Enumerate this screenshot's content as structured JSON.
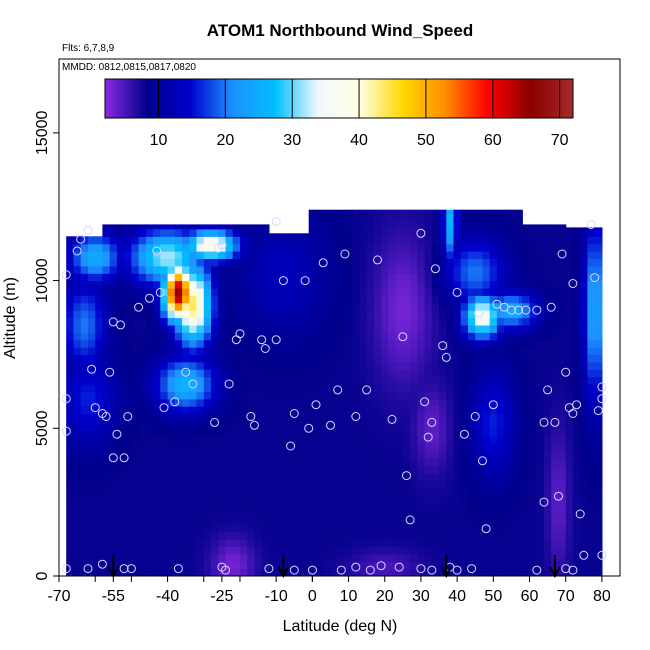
{
  "chart_data": {
    "type": "heatmap",
    "title": "ATOM1 Northbound Wind_Speed",
    "notes": [
      "Flts: 6,7,8,9",
      "MMDD: 0812,0815,0817,0820"
    ],
    "xlabel": "Latitude (deg N)",
    "ylabel": "Altitude (m)",
    "xlim": [
      -70,
      85
    ],
    "ylim": [
      0,
      17500
    ],
    "x_ticks": [
      "-70",
      "-55",
      "-40",
      "-25",
      "-10",
      "0",
      "10",
      "20",
      "30",
      "40",
      "50",
      "60",
      "70",
      "80"
    ],
    "x_tick_values": [
      -70,
      -55,
      -40,
      -25,
      -10,
      0,
      10,
      20,
      30,
      40,
      50,
      60,
      70,
      80
    ],
    "x_minor_ticks": [
      -60,
      -50,
      -30,
      -20,
      0
    ],
    "y_ticks": [
      "0",
      "5000",
      "10000",
      "15000"
    ],
    "y_tick_values": [
      0,
      5000,
      10000,
      15000
    ],
    "colorbar": {
      "range": [
        2,
        72
      ],
      "ticks": [
        "10",
        "20",
        "30",
        "40",
        "50",
        "60",
        "70"
      ],
      "tick_values": [
        10,
        20,
        30,
        40,
        50,
        60,
        70
      ],
      "colors": [
        "#8a2be2",
        "#00008b",
        "#0000cd",
        "#1e90ff",
        "#00bfff",
        "#f0f8ff",
        "#ffffe0",
        "#ffd700",
        "#ff8c00",
        "#ff0000",
        "#8b0000",
        "#a52a2a"
      ]
    },
    "field": {
      "background": 8,
      "features": [
        {
          "lat": -60,
          "alt": 10800,
          "w": 7,
          "h": 800,
          "v": 25
        },
        {
          "lat": -40,
          "alt": 10800,
          "w": 10,
          "h": 900,
          "v": 32
        },
        {
          "lat": -37,
          "alt": 9600,
          "w": 4,
          "h": 900,
          "v": 66
        },
        {
          "lat": -33,
          "alt": 9200,
          "w": 5,
          "h": 1300,
          "v": 44
        },
        {
          "lat": -28,
          "alt": 11200,
          "w": 7,
          "h": 500,
          "v": 40
        },
        {
          "lat": -35,
          "alt": 6500,
          "w": 8,
          "h": 900,
          "v": 26
        },
        {
          "lat": -63,
          "alt": 8500,
          "w": 6,
          "h": 1500,
          "v": 20
        },
        {
          "lat": -62,
          "alt": 6000,
          "w": 8,
          "h": 1500,
          "v": 16
        },
        {
          "lat": -22,
          "alt": 400,
          "w": 6,
          "h": 900,
          "v": 3
        },
        {
          "lat": 20,
          "alt": 300,
          "w": 10,
          "h": 600,
          "v": 5
        },
        {
          "lat": 25,
          "alt": 9000,
          "w": 8,
          "h": 2500,
          "v": 3
        },
        {
          "lat": 33,
          "alt": 5000,
          "w": 5,
          "h": 1500,
          "v": 4
        },
        {
          "lat": 38,
          "alt": 12000,
          "w": 2,
          "h": 1300,
          "v": 26
        },
        {
          "lat": 47,
          "alt": 8800,
          "w": 5,
          "h": 700,
          "v": 38
        },
        {
          "lat": 55,
          "alt": 9000,
          "w": 7,
          "h": 600,
          "v": 25
        },
        {
          "lat": 45,
          "alt": 10300,
          "w": 8,
          "h": 1100,
          "v": 20
        },
        {
          "lat": 78,
          "alt": 9000,
          "w": 3,
          "h": 3000,
          "v": 24
        },
        {
          "lat": 68,
          "alt": 2500,
          "w": 3,
          "h": 2500,
          "v": 4
        },
        {
          "lat": 50,
          "alt": 5200,
          "w": 6,
          "h": 1800,
          "v": 16
        },
        {
          "lat": -8,
          "alt": 10200,
          "w": 12,
          "h": 2000,
          "v": 13
        }
      ],
      "columns": [
        {
          "lat0": -68,
          "lat1": -58,
          "top": 11500
        },
        {
          "lat0": -58,
          "lat1": -12,
          "top": 11900
        },
        {
          "lat0": -12,
          "lat1": -1,
          "top": 11600
        },
        {
          "lat0": -1,
          "lat1": 58,
          "top": 12400
        },
        {
          "lat0": 58,
          "lat1": 70,
          "top": 11900
        },
        {
          "lat0": 70,
          "lat1": 80,
          "top": 11800
        }
      ]
    },
    "circles": [
      [
        -68,
        10200
      ],
      [
        -68,
        6000
      ],
      [
        -68,
        4900
      ],
      [
        -68,
        250
      ],
      [
        -65,
        11000
      ],
      [
        -64,
        11400
      ],
      [
        -62,
        11700
      ],
      [
        -61,
        7000
      ],
      [
        -60,
        5700
      ],
      [
        -58,
        5500
      ],
      [
        -57,
        5400
      ],
      [
        -56,
        6900
      ],
      [
        -55,
        8600
      ],
      [
        -55,
        4000
      ],
      [
        -54,
        4800
      ],
      [
        -53,
        8500
      ],
      [
        -52,
        4000
      ],
      [
        -51,
        5400
      ],
      [
        -52,
        250
      ],
      [
        -50,
        250
      ],
      [
        -58,
        400
      ],
      [
        -62,
        250
      ],
      [
        -48,
        9100
      ],
      [
        -45,
        9400
      ],
      [
        -42,
        9600
      ],
      [
        -43,
        11000
      ],
      [
        -41,
        5700
      ],
      [
        -38,
        5900
      ],
      [
        -35,
        6900
      ],
      [
        -33,
        6500
      ],
      [
        -27,
        5200
      ],
      [
        -26,
        11100
      ],
      [
        -25,
        11200
      ],
      [
        -23,
        6500
      ],
      [
        -21,
        8000
      ],
      [
        -20,
        8200
      ],
      [
        -17,
        5400
      ],
      [
        -16,
        5100
      ],
      [
        -14,
        8000
      ],
      [
        -13,
        7700
      ],
      [
        -10,
        12000
      ],
      [
        -10,
        8000
      ],
      [
        -8,
        10000
      ],
      [
        -6,
        4400
      ],
      [
        -5,
        5500
      ],
      [
        -2,
        10000
      ],
      [
        -1,
        5000
      ],
      [
        1,
        5800
      ],
      [
        3,
        10600
      ],
      [
        5,
        5100
      ],
      [
        7,
        6300
      ],
      [
        9,
        10900
      ],
      [
        12,
        5400
      ],
      [
        15,
        6300
      ],
      [
        18,
        10700
      ],
      [
        22,
        5300
      ],
      [
        25,
        8100
      ],
      [
        26,
        3400
      ],
      [
        27,
        1900
      ],
      [
        30,
        11600
      ],
      [
        31,
        5900
      ],
      [
        32,
        4700
      ],
      [
        33,
        5200
      ],
      [
        34,
        10400
      ],
      [
        36,
        7800
      ],
      [
        37,
        7400
      ],
      [
        40,
        9600
      ],
      [
        42,
        4800
      ],
      [
        45,
        5400
      ],
      [
        46,
        8900
      ],
      [
        47,
        3900
      ],
      [
        48,
        1600
      ],
      [
        50,
        5800
      ],
      [
        51,
        9200
      ],
      [
        53,
        9100
      ],
      [
        55,
        9000
      ],
      [
        57,
        9000
      ],
      [
        59,
        9000
      ],
      [
        62,
        9000
      ],
      [
        64,
        5200
      ],
      [
        64,
        2500
      ],
      [
        65,
        6300
      ],
      [
        66,
        9100
      ],
      [
        67,
        5200
      ],
      [
        68,
        2700
      ],
      [
        69,
        10900
      ],
      [
        70,
        6900
      ],
      [
        71,
        5700
      ],
      [
        72,
        9900
      ],
      [
        72,
        5500
      ],
      [
        73,
        5800
      ],
      [
        74,
        2100
      ],
      [
        75,
        700
      ],
      [
        77,
        11900
      ],
      [
        78,
        10100
      ],
      [
        79,
        5600
      ],
      [
        80,
        6400
      ],
      [
        80,
        6000
      ],
      [
        80,
        700
      ],
      [
        -37,
        250
      ],
      [
        -25,
        300
      ],
      [
        -24,
        200
      ],
      [
        -12,
        250
      ],
      [
        -5,
        200
      ],
      [
        0,
        200
      ],
      [
        8,
        200
      ],
      [
        12,
        300
      ],
      [
        16,
        200
      ],
      [
        19,
        350
      ],
      [
        24,
        300
      ],
      [
        30,
        250
      ],
      [
        33,
        200
      ],
      [
        38,
        300
      ],
      [
        40,
        200
      ],
      [
        44,
        250
      ],
      [
        62,
        200
      ],
      [
        70,
        250
      ],
      [
        72,
        200
      ]
    ],
    "arrows": [
      -55,
      -8,
      37,
      67
    ]
  }
}
